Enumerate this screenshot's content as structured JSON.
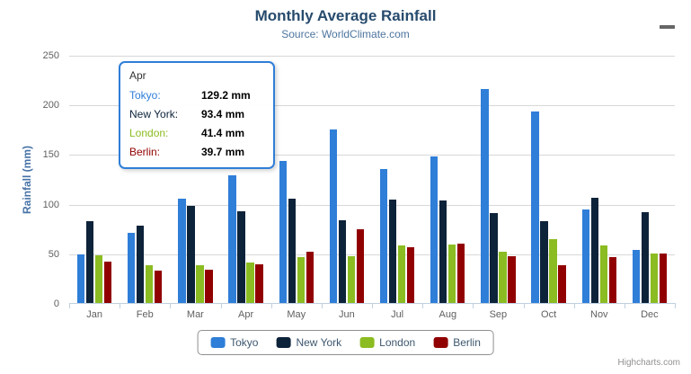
{
  "chart_data": {
    "type": "bar",
    "title": "Monthly Average Rainfall",
    "subtitle": "Source: WorldClimate.com",
    "categories": [
      "Jan",
      "Feb",
      "Mar",
      "Apr",
      "May",
      "Jun",
      "Jul",
      "Aug",
      "Sep",
      "Oct",
      "Nov",
      "Dec"
    ],
    "series": [
      {
        "name": "Tokyo",
        "color": "#2f7ed8",
        "values": [
          49.9,
          71.5,
          106.4,
          129.2,
          144.0,
          176.0,
          135.6,
          148.5,
          216.4,
          194.1,
          95.6,
          54.4
        ]
      },
      {
        "name": "New York",
        "color": "#0d233a",
        "values": [
          83.6,
          78.8,
          98.5,
          93.4,
          106.0,
          84.5,
          105.0,
          104.3,
          91.2,
          83.5,
          106.6,
          92.3
        ]
      },
      {
        "name": "London",
        "color": "#8bbc21",
        "values": [
          48.9,
          38.8,
          39.3,
          41.4,
          47.0,
          48.3,
          59.0,
          59.6,
          52.4,
          65.2,
          59.3,
          51.2
        ]
      },
      {
        "name": "Berlin",
        "color": "#910000",
        "values": [
          42.4,
          33.2,
          34.5,
          39.7,
          52.6,
          75.5,
          57.4,
          60.4,
          47.6,
          39.1,
          46.8,
          51.1
        ]
      }
    ],
    "xlabel": "",
    "ylabel": "Rainfall (mm)",
    "ylim": [
      0,
      250
    ],
    "yticks": [
      0,
      50,
      100,
      150,
      200,
      250
    ],
    "grid": true,
    "legend_position": "bottom-center"
  },
  "tooltip": {
    "category": "Apr",
    "rows": [
      {
        "label": "Tokyo:",
        "value": "129.2 mm",
        "color": "#2f7ed8"
      },
      {
        "label": "New York:",
        "value": "93.4 mm",
        "color": "#0d233a"
      },
      {
        "label": "London:",
        "value": "41.4 mm",
        "color": "#8bbc21"
      },
      {
        "label": "Berlin:",
        "value": "39.7 mm",
        "color": "#910000"
      }
    ]
  },
  "icons": {
    "context_menu": "hamburger-menu-icon"
  },
  "theme": {
    "title_color": "#274b6d",
    "subtitle_color": "#4d759e",
    "axis_label_color": "#606060",
    "y_title_color": "#4572a7",
    "gridline_color": "#d8d8d8",
    "axis_line_color": "#c0d0e0",
    "legend_text_color": "#3e576f"
  },
  "credits": {
    "label": "Highcharts.com"
  }
}
